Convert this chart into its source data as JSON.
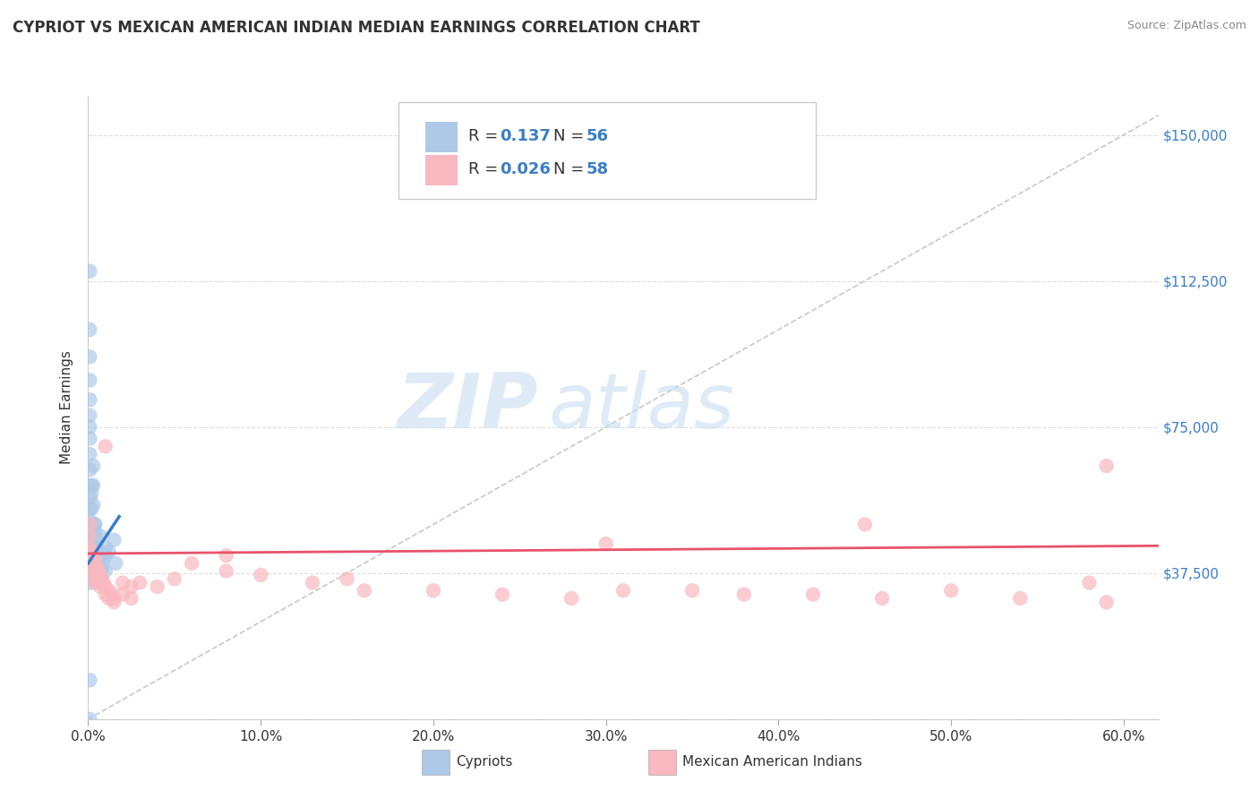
{
  "title": "CYPRIOT VS MEXICAN AMERICAN INDIAN MEDIAN EARNINGS CORRELATION CHART",
  "source": "Source: ZipAtlas.com",
  "ylabel": "Median Earnings",
  "xlim": [
    0.0,
    0.62
  ],
  "ylim": [
    0,
    160000
  ],
  "yticks": [
    0,
    37500,
    75000,
    112500,
    150000
  ],
  "right_ytick_labels": [
    "",
    "$37,500",
    "$75,000",
    "$112,500",
    "$150,000"
  ],
  "xtick_vals": [
    0.0,
    0.1,
    0.2,
    0.3,
    0.4,
    0.5,
    0.6
  ],
  "xlabel_ticks": [
    "0.0%",
    "10.0%",
    "20.0%",
    "30.0%",
    "40.0%",
    "50.0%",
    "60.0%"
  ],
  "cypriot_color": "#aec9e8",
  "mexican_color": "#f9b8c0",
  "cypriot_line_color": "#3a7dc9",
  "mexican_line_color": "#e8526a",
  "diagonal_color": "#bbbbbb",
  "label_blue": "#3a7dc9",
  "R_cypriot": "0.137",
  "N_cypriot": "56",
  "R_mexican": "0.026",
  "N_mexican": "58",
  "watermark_zip": "ZIP",
  "watermark_atlas": "atlas",
  "legend_labels": [
    "Cypriots",
    "Mexican American Indians"
  ],
  "cypriot_scatter_x": [
    0.001,
    0.001,
    0.001,
    0.001,
    0.001,
    0.001,
    0.001,
    0.001,
    0.001,
    0.001,
    0.001,
    0.001,
    0.001,
    0.001,
    0.001,
    0.001,
    0.001,
    0.001,
    0.001,
    0.002,
    0.002,
    0.002,
    0.003,
    0.003,
    0.003,
    0.004,
    0.004,
    0.005,
    0.005,
    0.006,
    0.006,
    0.007,
    0.007,
    0.008,
    0.009,
    0.01,
    0.01,
    0.012,
    0.015,
    0.016,
    0.001,
    0.001,
    0.001,
    0.001,
    0.001,
    0.003,
    0.004,
    0.005,
    0.002,
    0.002,
    0.003,
    0.004,
    0.005,
    0.006,
    0.008,
    0.01
  ],
  "cypriot_scatter_y": [
    115000,
    100000,
    93000,
    87000,
    82000,
    78000,
    75000,
    72000,
    68000,
    64000,
    60000,
    57000,
    54000,
    51000,
    48000,
    46000,
    44000,
    42000,
    40000,
    58000,
    54000,
    50000,
    65000,
    60000,
    55000,
    50000,
    42000,
    46000,
    44000,
    43000,
    40000,
    47000,
    41000,
    39000,
    41000,
    44000,
    38000,
    43000,
    46000,
    40000,
    10000,
    0,
    38000,
    36000,
    35000,
    48000,
    50000,
    40000,
    60000,
    38000,
    45000,
    48000,
    43000,
    38000,
    38000,
    42000
  ],
  "mexican_scatter_x": [
    0.001,
    0.001,
    0.001,
    0.001,
    0.002,
    0.002,
    0.002,
    0.003,
    0.003,
    0.003,
    0.004,
    0.004,
    0.004,
    0.005,
    0.005,
    0.006,
    0.006,
    0.007,
    0.007,
    0.008,
    0.009,
    0.01,
    0.01,
    0.012,
    0.012,
    0.014,
    0.015,
    0.015,
    0.02,
    0.02,
    0.025,
    0.025,
    0.03,
    0.04,
    0.05,
    0.06,
    0.08,
    0.1,
    0.13,
    0.16,
    0.2,
    0.24,
    0.28,
    0.31,
    0.35,
    0.38,
    0.42,
    0.46,
    0.5,
    0.54,
    0.58,
    0.59,
    0.01,
    0.3,
    0.45,
    0.59,
    0.08,
    0.15
  ],
  "mexican_scatter_y": [
    50000,
    47000,
    44000,
    41000,
    43000,
    41000,
    39000,
    42000,
    39000,
    36000,
    41000,
    38000,
    35000,
    39000,
    36000,
    38000,
    35000,
    37000,
    34000,
    36000,
    35000,
    34000,
    32000,
    33000,
    31000,
    32000,
    31000,
    30000,
    35000,
    32000,
    34000,
    31000,
    35000,
    34000,
    36000,
    40000,
    38000,
    37000,
    35000,
    33000,
    33000,
    32000,
    31000,
    33000,
    33000,
    32000,
    32000,
    31000,
    33000,
    31000,
    35000,
    30000,
    70000,
    45000,
    50000,
    65000,
    42000,
    36000
  ],
  "cypriot_trend_x": [
    0.0,
    0.018
  ],
  "cypriot_trend_y": [
    40000,
    52000
  ],
  "mexican_trend_x": [
    0.0,
    0.62
  ],
  "mexican_trend_y": [
    42500,
    44500
  ]
}
